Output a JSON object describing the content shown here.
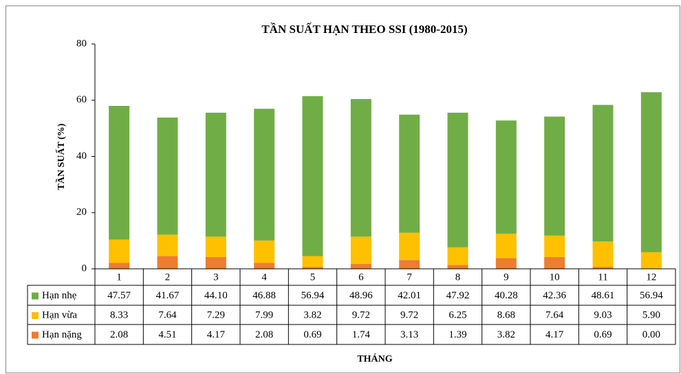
{
  "chart_data": {
    "type": "stacked_bar",
    "title": "TẦN SUẤT HẠN THEO SSI (1980-2015)",
    "x_label": "THÁNG",
    "y_label": "TẦN SUẤT (%)",
    "categories": [
      "1",
      "2",
      "3",
      "4",
      "5",
      "6",
      "7",
      "8",
      "9",
      "10",
      "11",
      "12"
    ],
    "series": [
      {
        "name": "Hạn nhẹ",
        "color": "#70ad47",
        "values": [
          47.57,
          41.67,
          44.1,
          46.88,
          56.94,
          48.96,
          42.01,
          47.92,
          40.28,
          42.36,
          48.61,
          56.94
        ],
        "value_labels": [
          "47.57",
          "41.67",
          "44.10",
          "46.88",
          "56.94",
          "48.96",
          "42.01",
          "47.92",
          "40.28",
          "42.36",
          "48.61",
          "56.94"
        ]
      },
      {
        "name": "Hạn vừa",
        "color": "#ffc000",
        "values": [
          8.33,
          7.64,
          7.29,
          7.99,
          3.82,
          9.72,
          9.72,
          6.25,
          8.68,
          7.64,
          9.03,
          5.9
        ],
        "value_labels": [
          "8.33",
          "7.64",
          "7.29",
          "7.99",
          "3.82",
          "9.72",
          "9.72",
          "6.25",
          "8.68",
          "7.64",
          "9.03",
          "5.90"
        ]
      },
      {
        "name": "Hạn nặng",
        "color": "#ed7d31",
        "values": [
          2.08,
          4.51,
          4.17,
          2.08,
          0.69,
          1.74,
          3.13,
          1.39,
          3.82,
          4.17,
          0.69,
          0
        ],
        "value_labels": [
          "2.08",
          "4.51",
          "4.17",
          "2.08",
          "0.69",
          "1.74",
          "3.13",
          "1.39",
          "3.82",
          "4.17",
          "0.69",
          "0.00"
        ]
      }
    ],
    "ylim": [
      0,
      80
    ],
    "yticks": [
      0,
      20,
      40,
      60,
      80
    ]
  }
}
